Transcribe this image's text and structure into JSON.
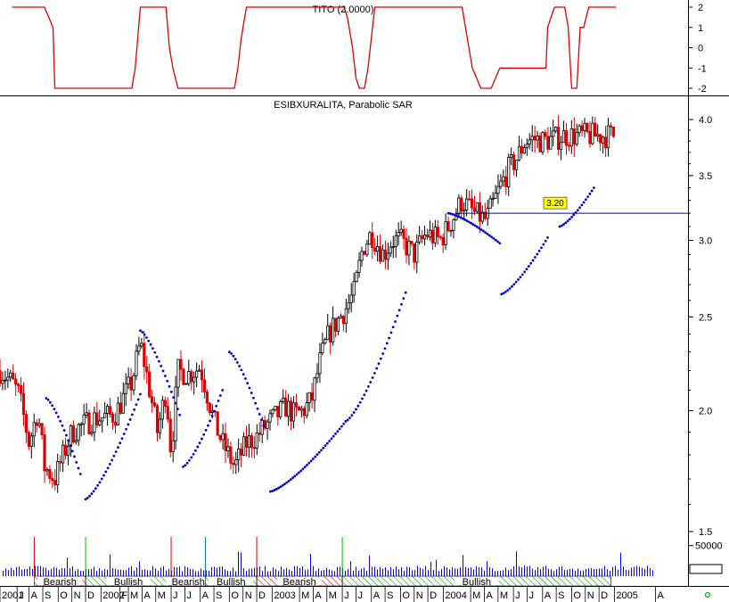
{
  "chart_data": [
    {
      "type": "line",
      "title": "TITO (2.0000)",
      "ylim": [
        -2.2,
        2.3
      ],
      "yticks": [
        "2",
        "1",
        "0",
        "-1",
        "-2"
      ],
      "grid": false,
      "color": "#e00000",
      "series": [
        {
          "x": [
            2001.45,
            2001.64,
            2001.69,
            2001.7,
            2002.15,
            2002.17,
            2002.19,
            2002.2,
            2002.35,
            2002.37,
            2002.39,
            2002.42,
            2002.75,
            2002.77,
            2002.79,
            2002.82,
            2003.39,
            2003.41,
            2003.44,
            2003.46,
            2003.48,
            2003.51,
            2003.53,
            2003.57,
            2004.08,
            2004.1,
            2004.14,
            2004.19,
            2004.25,
            2004.3,
            2004.32,
            2004.34,
            2004.36,
            2004.57,
            2004.58,
            2004.62,
            2004.68,
            2004.7,
            2004.72,
            2004.75,
            2004.77,
            2004.79,
            2004.82,
            2004.84,
            2004.86,
            2004.98
          ],
          "y": [
            2,
            2,
            1,
            -2,
            -2,
            -1,
            1,
            2,
            2,
            0,
            -1,
            -2,
            -2,
            -1,
            0.5,
            2,
            2,
            1.5,
            0,
            -1.5,
            -2,
            -2,
            -1,
            2,
            2,
            1,
            -1,
            -2,
            -2,
            -1,
            -1,
            -1,
            -1,
            -1,
            1,
            2,
            2,
            1,
            -2,
            -2,
            1,
            1,
            2,
            2,
            2,
            2
          ]
        }
      ]
    },
    {
      "type": "candlestick",
      "title": "ESIBXURALITA, Parabolic SAR",
      "ylim": [
        1.42,
        4.15
      ],
      "log_scale": true,
      "yticks": [
        "4.0",
        "3.5",
        "3.0",
        "2.5",
        "2.0",
        "1.5"
      ],
      "grid": false,
      "up_color": "#000000",
      "down_color": "#e00000",
      "sar_color": "#0000c8",
      "annotation": {
        "label": "3.20",
        "value": 3.2,
        "from": 2004.04,
        "color": "#ffff00"
      },
      "price_anchors": {
        "x": [
          2001.38,
          2001.45,
          2001.49,
          2001.55,
          2001.6,
          2001.64,
          2001.7,
          2001.8,
          2001.92,
          2002.05,
          2002.15,
          2002.2,
          2002.25,
          2002.3,
          2002.35,
          2002.38,
          2002.42,
          2002.48,
          2002.55,
          2002.6,
          2002.63,
          2002.68,
          2002.75,
          2002.82,
          2002.88,
          2002.92,
          2003.0,
          2003.05,
          2003.1,
          2003.15,
          2003.2,
          2003.25,
          2003.3,
          2003.4,
          2003.45,
          2003.5,
          2003.55,
          2003.62,
          2003.67,
          2003.72,
          2003.8,
          2003.87,
          2003.95,
          2004.0,
          2004.04,
          2004.08,
          2004.15,
          2004.22,
          2004.27,
          2004.3,
          2004.35,
          2004.4,
          2004.45,
          2004.5,
          2004.55,
          2004.62,
          2004.68,
          2004.75,
          2004.8,
          2004.85,
          2004.9,
          2004.95,
          2004.98
        ],
        "y": [
          2.2,
          2.14,
          2.08,
          1.85,
          2.0,
          1.75,
          1.7,
          1.9,
          1.96,
          1.98,
          2.14,
          2.35,
          2.12,
          1.9,
          2.1,
          1.8,
          2.2,
          2.18,
          2.22,
          2.05,
          1.95,
          1.85,
          1.75,
          1.85,
          1.88,
          1.92,
          1.98,
          2.02,
          1.98,
          2.0,
          2.05,
          2.25,
          2.4,
          2.55,
          2.65,
          2.95,
          3.05,
          2.9,
          3.0,
          3.0,
          2.9,
          3.05,
          3.0,
          3.1,
          3.2,
          3.3,
          3.2,
          3.15,
          3.3,
          3.4,
          3.55,
          3.65,
          3.8,
          3.82,
          3.8,
          3.82,
          3.85,
          3.85,
          3.85,
          3.85,
          3.85,
          3.85,
          3.85
        ]
      },
      "sar_segments": [
        {
          "x": [
            2001.65,
            2001.85
          ],
          "from": 2.06,
          "to": 1.72
        },
        {
          "x": [
            2001.88,
            2002.2
          ],
          "from": 1.62,
          "to": 2.08
        },
        {
          "x": [
            2002.2,
            2002.43
          ],
          "from": 2.42,
          "to": 1.98
        },
        {
          "x": [
            2002.45,
            2002.68
          ],
          "from": 1.75,
          "to": 2.1
        },
        {
          "x": [
            2002.72,
            2002.92
          ],
          "from": 2.3,
          "to": 1.93
        },
        {
          "x": [
            2002.96,
            2003.4
          ],
          "from": 1.65,
          "to": 1.95
        },
        {
          "x": [
            2003.4,
            2003.75
          ],
          "from": 1.95,
          "to": 2.65
        },
        {
          "x": [
            2004.0,
            2004.3
          ],
          "from": 3.2,
          "to": 2.98
        },
        {
          "x": [
            2004.31,
            2004.58
          ],
          "from": 2.64,
          "to": 3.02
        },
        {
          "x": [
            2004.65,
            2004.85
          ],
          "from": 3.1,
          "to": 3.4
        }
      ]
    },
    {
      "type": "bar",
      "title": "",
      "yticks": [
        "50000"
      ],
      "ylim": [
        0,
        70000
      ],
      "color": "#0000ff",
      "signal_lines": [
        {
          "x": 2001.58,
          "color": "#e00000"
        },
        {
          "x": 2001.88,
          "color": "#00c000"
        },
        {
          "x": 2002.38,
          "color": "#e00000"
        },
        {
          "x": 2002.58,
          "color": "#008080"
        },
        {
          "x": 2002.88,
          "color": "#e00000"
        },
        {
          "x": 2003.38,
          "color": "#00c000"
        }
      ]
    }
  ],
  "trend_bands": [
    {
      "label": "Bearish",
      "from": 2001.58,
      "to": 2001.88,
      "type": "bearish"
    },
    {
      "label": "Bullish",
      "from": 2001.88,
      "to": 2002.38,
      "type": "bullish"
    },
    {
      "label": "Bearish",
      "from": 2002.38,
      "to": 2002.58,
      "type": "bearish"
    },
    {
      "label": "Bullish",
      "from": 2002.58,
      "to": 2002.88,
      "type": "bullish"
    },
    {
      "label": "Bearish",
      "from": 2002.88,
      "to": 2003.38,
      "type": "bearish"
    },
    {
      "label": "Bullish",
      "from": 2003.38,
      "to": 2004.95,
      "type": "bullish"
    }
  ],
  "x_axis": {
    "start": 2001.38,
    "labels": [
      {
        "text": "2001",
        "x": 2001.38,
        "year": true
      },
      {
        "text": "J",
        "x": 2001.48
      },
      {
        "text": "A",
        "x": 2001.55
      },
      {
        "text": "S",
        "x": 2001.63
      },
      {
        "text": "O",
        "x": 2001.72
      },
      {
        "text": "N",
        "x": 2001.8
      },
      {
        "text": "D",
        "x": 2001.88
      },
      {
        "text": "2002",
        "x": 2001.97,
        "year": true
      },
      {
        "text": "F",
        "x": 2002.08
      },
      {
        "text": "M",
        "x": 2002.13
      },
      {
        "text": "A",
        "x": 2002.21
      },
      {
        "text": "M",
        "x": 2002.29
      },
      {
        "text": "J",
        "x": 2002.38
      },
      {
        "text": "J",
        "x": 2002.46
      },
      {
        "text": "A",
        "x": 2002.55
      },
      {
        "text": "S",
        "x": 2002.63
      },
      {
        "text": "O",
        "x": 2002.72
      },
      {
        "text": "N",
        "x": 2002.8
      },
      {
        "text": "D",
        "x": 2002.88
      },
      {
        "text": "2003",
        "x": 2002.97,
        "year": true
      },
      {
        "text": "M",
        "x": 2003.13
      },
      {
        "text": "A",
        "x": 2003.21
      },
      {
        "text": "M",
        "x": 2003.29
      },
      {
        "text": "J",
        "x": 2003.38
      },
      {
        "text": "J",
        "x": 2003.46
      },
      {
        "text": "A",
        "x": 2003.55
      },
      {
        "text": "S",
        "x": 2003.63
      },
      {
        "text": "O",
        "x": 2003.72
      },
      {
        "text": "N",
        "x": 2003.8
      },
      {
        "text": "D",
        "x": 2003.88
      },
      {
        "text": "2004",
        "x": 2003.97,
        "year": true
      },
      {
        "text": "M",
        "x": 2004.13
      },
      {
        "text": "A",
        "x": 2004.21
      },
      {
        "text": "M",
        "x": 2004.29
      },
      {
        "text": "J",
        "x": 2004.38
      },
      {
        "text": "J",
        "x": 2004.46
      },
      {
        "text": "A",
        "x": 2004.55
      },
      {
        "text": "S",
        "x": 2004.63
      },
      {
        "text": "O",
        "x": 2004.72
      },
      {
        "text": "N",
        "x": 2004.8
      },
      {
        "text": "D",
        "x": 2004.88
      },
      {
        "text": "2005",
        "x": 2004.97,
        "year": true
      },
      {
        "text": "A",
        "x": 2005.21
      }
    ]
  },
  "colors": {
    "axis": "#000000",
    "tito_line": "#e00000",
    "candle_up": "#000000",
    "candle_down": "#e00000",
    "sar": "#0000c8",
    "volume": "#0000ff",
    "bullish_hatch": "#00a000",
    "bearish_hatch": "#e00000",
    "label_box": "#ffff00"
  }
}
